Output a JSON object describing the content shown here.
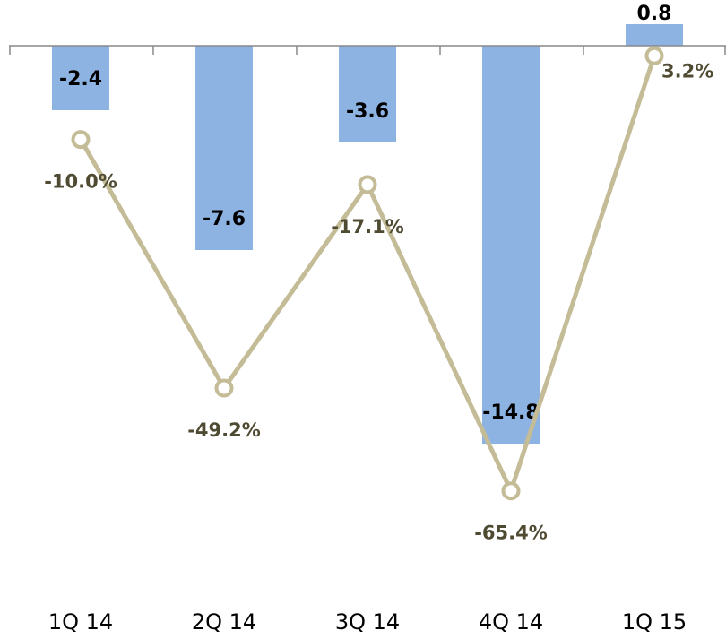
{
  "chart_data": {
    "type": "bar",
    "categories": [
      "1Q 14",
      "2Q 14",
      "3Q 14",
      "4Q 14",
      "1Q 15"
    ],
    "series": [
      {
        "type": "bar",
        "color": "#8db3e2",
        "values": [
          -2.4,
          -7.6,
          -3.6,
          -14.8,
          0.8
        ]
      },
      {
        "type": "line",
        "axis": "y2",
        "color": "#c4bc96",
        "values": [
          -10.0,
          -49.2,
          -17.1,
          -65.4,
          3.2
        ],
        "value_labels": [
          "-10.0%",
          "-49.2%",
          "-17.1%",
          "-65.4%",
          "3.2%"
        ]
      }
    ],
    "ylim": [
      -20,
      1.7
    ],
    "y2lim": [
      -80,
      12
    ]
  }
}
